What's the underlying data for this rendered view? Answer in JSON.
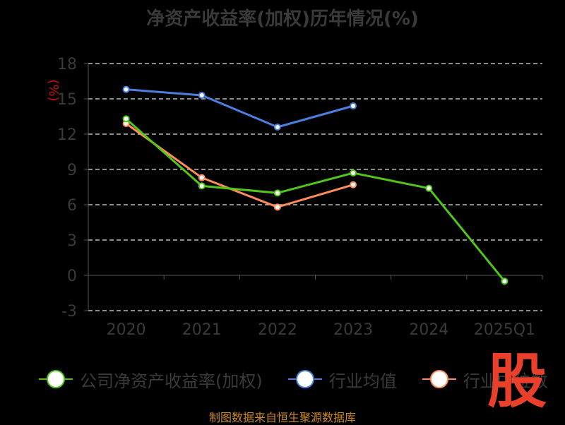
{
  "chart_data": {
    "type": "line",
    "title": "净资产收益率(加权)历年情况(%)",
    "ylabel": "(%)",
    "categories": [
      "2020",
      "2021",
      "2022",
      "2023",
      "2024",
      "2025Q1"
    ],
    "ylim": [
      -3,
      18
    ],
    "yticks": [
      -3,
      0,
      3,
      6,
      9,
      12,
      15,
      18
    ],
    "grid": true,
    "legend_position": "bottom",
    "series": [
      {
        "name": "公司净资产收益率(加权)",
        "color": "#52c41a",
        "values": [
          13.3,
          7.6,
          7.0,
          8.7,
          7.4,
          -0.5
        ]
      },
      {
        "name": "行业均值",
        "color": "#4a7fe0",
        "values": [
          15.8,
          15.3,
          12.6,
          14.4,
          null,
          null
        ]
      },
      {
        "name": "行业中位数",
        "color": "#ff8c5a",
        "values": [
          12.9,
          8.3,
          5.8,
          7.7,
          null,
          null
        ]
      }
    ]
  },
  "legend": {
    "items": [
      "公司净资产收益率(加权)",
      "行业均值",
      "行业中位数"
    ]
  },
  "footer": {
    "source": "制图数据来自恒生聚源数据库"
  },
  "watermark": {
    "text": "股"
  }
}
